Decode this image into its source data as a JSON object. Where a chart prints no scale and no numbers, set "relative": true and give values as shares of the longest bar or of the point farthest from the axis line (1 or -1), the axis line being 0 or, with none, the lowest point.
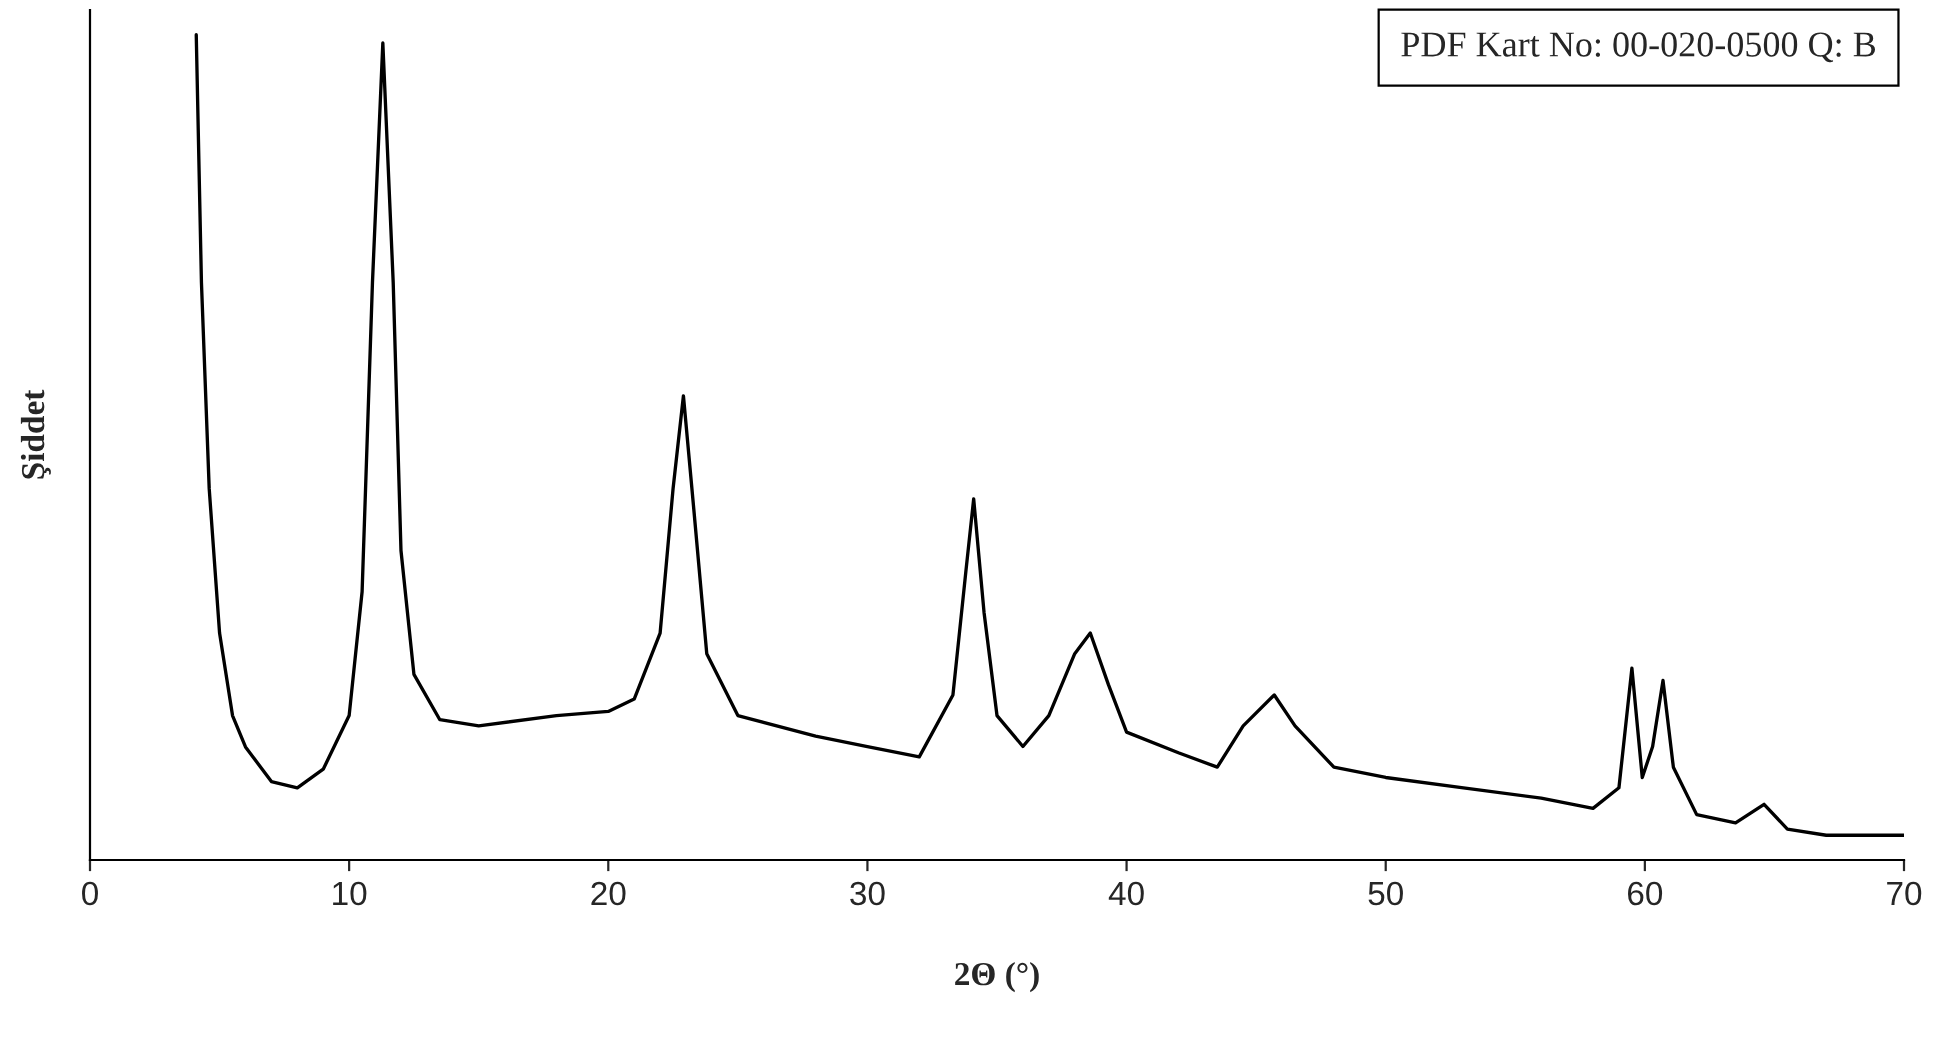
{
  "chart_data": {
    "type": "line",
    "relative": true,
    "xlabel": "2Θ (°)",
    "ylabel": "Şiddet",
    "annotations": [
      "PDF Kart No: 00-020-0500 Q: B"
    ],
    "xlim": [
      0,
      70
    ],
    "xticks": [
      0,
      10,
      20,
      30,
      40,
      50,
      60,
      70
    ],
    "grid": false,
    "legend": false,
    "marker": "none",
    "line_style": "solid",
    "tick_labels": "x",
    "series": [
      {
        "color": "#000000",
        "x": [
          4.1,
          4.3,
          4.6,
          5.0,
          5.5,
          6.0,
          7.0,
          8.0,
          9.0,
          10.0,
          10.5,
          10.9,
          11.3,
          11.7,
          12.0,
          12.5,
          13.5,
          15,
          18,
          20,
          21,
          22,
          22.5,
          22.9,
          23.3,
          23.8,
          25,
          28,
          30,
          32,
          33.3,
          33.8,
          34.1,
          34.5,
          35,
          36,
          37,
          38,
          38.6,
          39.3,
          40,
          42,
          43.5,
          44.5,
          45.7,
          46.5,
          48,
          50,
          53,
          56,
          58,
          59,
          59.5,
          59.9,
          60.3,
          60.7,
          61.1,
          62,
          63.5,
          64.6,
          65.5,
          67,
          70
        ],
        "values": [
          1.0,
          0.7,
          0.45,
          0.275,
          0.175,
          0.137,
          0.095,
          0.0875,
          0.11,
          0.175,
          0.325,
          0.7,
          0.99,
          0.7,
          0.375,
          0.225,
          0.17,
          0.1625,
          0.175,
          0.18,
          0.195,
          0.275,
          0.45,
          0.5625,
          0.425,
          0.25,
          0.175,
          0.15,
          0.1375,
          0.125,
          0.2,
          0.35,
          0.4375,
          0.3,
          0.175,
          0.1375,
          0.175,
          0.25,
          0.275,
          0.2125,
          0.155,
          0.13,
          0.1125,
          0.1625,
          0.2,
          0.1625,
          0.1125,
          0.1,
          0.0875,
          0.075,
          0.0625,
          0.0875,
          0.2325,
          0.1,
          0.1375,
          0.2175,
          0.1125,
          0.055,
          0.045,
          0.0675,
          0.0375,
          0.03,
          0.03
        ]
      }
    ]
  }
}
